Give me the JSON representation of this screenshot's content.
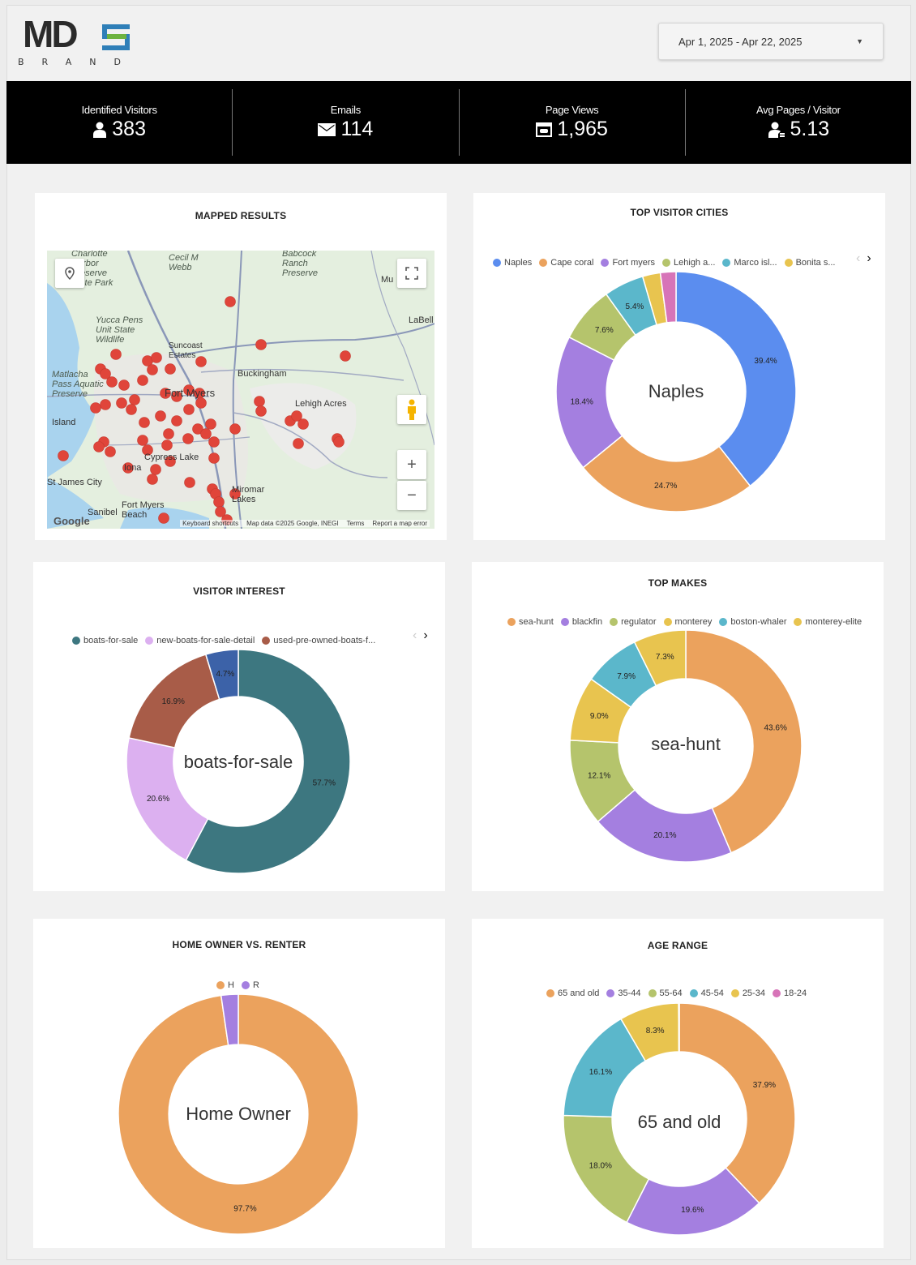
{
  "header": {
    "logo_text": "MDS",
    "logo_sub": "BRAND",
    "date_range": "Apr 1, 2025 - Apr 22, 2025"
  },
  "stats": [
    {
      "label": "Identified Visitors",
      "value": "383",
      "icon": "person-icon"
    },
    {
      "label": "Emails",
      "value": "114",
      "icon": "envelope-icon"
    },
    {
      "label": "Page Views",
      "value": "1,965",
      "icon": "browser-window-icon"
    },
    {
      "label": "Avg Pages / Visitor",
      "value": "5.13",
      "icon": "user-pages-icon"
    }
  ],
  "map_card": {
    "title": "MAPPED RESULTS",
    "places": [
      "Charlotte Harbor Preserve State Park",
      "Cecil M Webb",
      "Babcock Ranch Preserve",
      "Yucca Pens Unit State Wildlife",
      "Suncoast Estates",
      "Matlacha Pass Aquatic Preserve",
      "Fort Myers",
      "Buckingham",
      "Lehigh Acres",
      "Cypress Lake",
      "St James City",
      "Iona",
      "Sanibel",
      "Fort Myers Beach",
      "Miromar Lakes",
      "Island",
      "LaBell",
      "Mu"
    ],
    "attribution": {
      "shortcuts": "Keyboard shortcuts",
      "data": "Map data ©2025 Google, INEGI",
      "terms": "Terms",
      "report": "Report a map error"
    },
    "brand": "Google",
    "zoom_in": "+",
    "zoom_out": "−"
  },
  "charts": {
    "cities": {
      "title": "TOP VISITOR CITIES",
      "center": "Naples",
      "legend": [
        "Naples",
        "Cape coral",
        "Fort myers",
        "Lehigh a...",
        "Marco isl...",
        "Bonita s..."
      ]
    },
    "interest": {
      "title": "VISITOR INTEREST",
      "center": "boats-for-sale",
      "legend": [
        "boats-for-sale",
        "new-boats-for-sale-detail",
        "used-pre-owned-boats-f..."
      ]
    },
    "makes": {
      "title": "TOP MAKES",
      "center": "sea-hunt",
      "legend": [
        "sea-hunt",
        "blackfin",
        "regulator",
        "monterey",
        "boston-whaler",
        "monterey-elite"
      ]
    },
    "owner": {
      "title": "HOME OWNER VS. RENTER",
      "center": "Home Owner",
      "legend": [
        "H",
        "R"
      ]
    },
    "age": {
      "title": "AGE RANGE",
      "center": "65 and old",
      "legend": [
        "65 and old",
        "35-44",
        "55-64",
        "45-54",
        "25-34",
        "18-24"
      ]
    }
  },
  "chart_data": [
    {
      "type": "pie",
      "id": "cities",
      "title": "TOP VISITOR CITIES",
      "categories": [
        "Naples",
        "Cape coral",
        "Fort myers",
        "Lehigh a...",
        "Marco isl...",
        "Bonita s...",
        ""
      ],
      "values": [
        39.4,
        24.7,
        18.4,
        7.6,
        5.4,
        2.4,
        2.1
      ],
      "labels": [
        "39.4%",
        "24.7%",
        "18.4%",
        "7.6%",
        "5.4%",
        "",
        ""
      ],
      "colors": [
        "#5b8def",
        "#eba25d",
        "#a47fe0",
        "#b5c46c",
        "#5bb7cb",
        "#e8c44f",
        "#d774b8"
      ]
    },
    {
      "type": "pie",
      "id": "interest",
      "title": "VISITOR INTEREST",
      "categories": [
        "boats-for-sale",
        "new-boats-for-sale-detail",
        "used-pre-owned-boats-f...",
        ""
      ],
      "values": [
        57.7,
        20.6,
        16.9,
        4.7
      ],
      "labels": [
        "57.7%",
        "20.6%",
        "16.9%",
        "4.7%"
      ],
      "colors": [
        "#3d7780",
        "#dcb0f0",
        "#a85c48",
        "#3c62a8"
      ]
    },
    {
      "type": "pie",
      "id": "makes",
      "title": "TOP MAKES",
      "categories": [
        "sea-hunt",
        "blackfin",
        "regulator",
        "monterey",
        "boston-whaler",
        "monterey-elite"
      ],
      "values": [
        43.6,
        20.1,
        12.1,
        9.0,
        7.9,
        7.3
      ],
      "labels": [
        "43.6%",
        "20.1%",
        "12.1%",
        "9.0%",
        "7.9%",
        "7.3%"
      ],
      "colors": [
        "#eba25d",
        "#a47fe0",
        "#b5c46c",
        "#e8c44f",
        "#5bb7cb",
        "#e8c44f"
      ]
    },
    {
      "type": "pie",
      "id": "owner",
      "title": "HOME OWNER VS. RENTER",
      "categories": [
        "H",
        "R"
      ],
      "values": [
        97.7,
        2.3
      ],
      "labels": [
        "97.7%",
        ""
      ],
      "colors": [
        "#eba25d",
        "#a47fe0"
      ]
    },
    {
      "type": "pie",
      "id": "age",
      "title": "AGE RANGE",
      "categories": [
        "65 and old",
        "35-44",
        "55-64",
        "45-54",
        "25-34",
        "18-24"
      ],
      "values": [
        37.9,
        19.6,
        18.0,
        16.1,
        8.3,
        0.1
      ],
      "labels": [
        "37.9%",
        "19.6%",
        "18.0%",
        "16.1%",
        "8.3%",
        ""
      ],
      "colors": [
        "#eba25d",
        "#a47fe0",
        "#b5c46c",
        "#5bb7cb",
        "#e8c44f",
        "#d774b8"
      ]
    }
  ],
  "legend_colors": {
    "cities": [
      "#5b8def",
      "#eba25d",
      "#a47fe0",
      "#b5c46c",
      "#5bb7cb",
      "#e8c44f"
    ],
    "interest": [
      "#3d7780",
      "#dcb0f0",
      "#a85c48"
    ],
    "makes": [
      "#eba25d",
      "#a47fe0",
      "#b5c46c",
      "#e8c44f",
      "#5bb7cb",
      "#e8c44f"
    ],
    "owner": [
      "#eba25d",
      "#a47fe0"
    ],
    "age": [
      "#eba25d",
      "#a47fe0",
      "#b5c46c",
      "#5bb7cb",
      "#e8c44f",
      "#d774b8"
    ]
  },
  "theme": {
    "map_marker": "#e0453a",
    "header_bg": "#000000",
    "logo_blue": "#2f7fb8",
    "logo_green": "#6db33f"
  }
}
